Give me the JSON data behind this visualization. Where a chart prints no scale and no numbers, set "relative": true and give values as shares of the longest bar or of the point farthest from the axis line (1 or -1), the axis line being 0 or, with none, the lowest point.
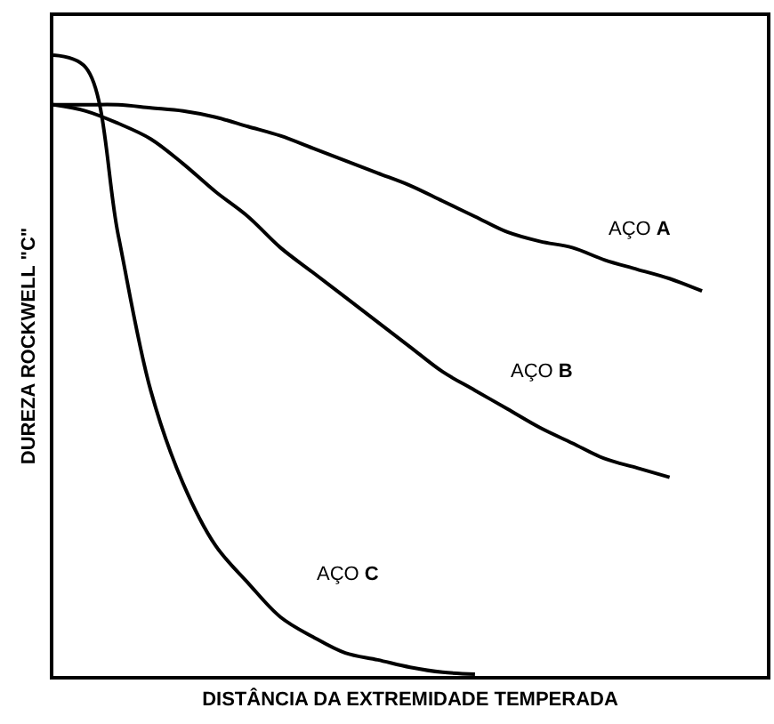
{
  "chart_data": {
    "type": "line",
    "relative": true,
    "xlabel": "DISTÂNCIA DA EXTREMIDADE TEMPERADA",
    "ylabel": "DUREZA ROCKWELL \"C\"",
    "categories": [
      null,
      null,
      null,
      null,
      null,
      null,
      null,
      null,
      null,
      null,
      null,
      null,
      null,
      null,
      null,
      null,
      null,
      null,
      null,
      null,
      null
    ],
    "series": [
      {
        "name": "AÇO A",
        "color": "#000000",
        "values": [
          0.92,
          0.92,
          0.92,
          0.915,
          0.91,
          0.9,
          0.885,
          0.87,
          0.85,
          0.83,
          0.81,
          0.79,
          0.765,
          0.74,
          0.715,
          0.7,
          0.69,
          0.67,
          0.655,
          0.64,
          0.62
        ]
      },
      {
        "name": "AÇO B",
        "color": "#000000",
        "values": [
          0.92,
          0.91,
          0.89,
          0.865,
          0.825,
          0.78,
          0.74,
          0.69,
          0.65,
          0.61,
          0.57,
          0.53,
          0.49,
          0.46,
          0.43,
          0.4,
          0.375,
          0.35,
          0.335,
          0.32,
          null
        ]
      },
      {
        "name": "AÇO C",
        "color": "#000000",
        "values": [
          1.0,
          0.98,
          0.71,
          0.46,
          0.31,
          0.21,
          0.15,
          0.095,
          0.063,
          0.037,
          0.026,
          0.014,
          0.006,
          0.003,
          null,
          null,
          null,
          null,
          null,
          null,
          null
        ]
      }
    ],
    "legend": false,
    "marker": "none",
    "line_style": "solid",
    "tick_labels": false
  }
}
